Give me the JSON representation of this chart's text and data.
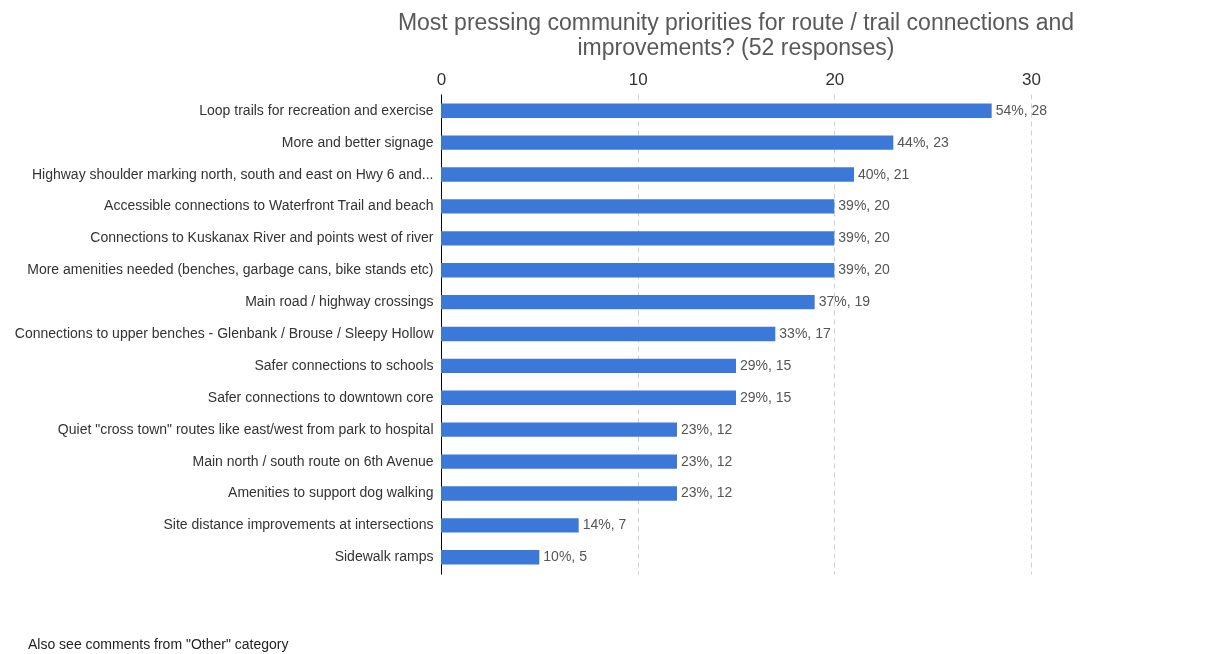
{
  "chart_data": {
    "type": "bar",
    "orientation": "horizontal",
    "title": "Most pressing community priorities for route / trail connections and improvements? (52 responses)",
    "categories": [
      "Loop trails for recreation and exercise",
      "More and better signage",
      "Highway shoulder marking north, south and east on Hwy 6 and...",
      "Accessible connections to Waterfront Trail and beach",
      "Connections to Kuskanax River and points west of river",
      "More amenities needed (benches, garbage cans, bike stands etc)",
      "Main road / highway crossings",
      "Connections to upper benches  - Glenbank / Brouse / Sleepy Hollow",
      "Safer connections to schools",
      "Safer connections to downtown core",
      "Quiet \"cross town\" routes like east/west from park to hospital",
      "Main north / south route  on 6th Avenue",
      "Amenities to support dog walking",
      "Site distance improvements at intersections",
      "Sidewalk ramps"
    ],
    "values": [
      28,
      23,
      21,
      20,
      20,
      20,
      19,
      17,
      15,
      15,
      12,
      12,
      12,
      7,
      5
    ],
    "value_labels": [
      "54%, 28",
      "44%, 23",
      "40%, 21",
      "39%, 20",
      "39%, 20",
      "39%, 20",
      "37%, 19",
      "33%, 17",
      "29%, 15",
      "29%, 15",
      "23%, 12",
      "23%, 12",
      "23%, 12",
      "14%, 7",
      "10%, 5"
    ],
    "color": "#3c78d8",
    "xlim": [
      0,
      30
    ],
    "xticks": [
      0,
      10,
      20,
      30
    ],
    "grid": "x",
    "annotations": [
      "Also see comments from \"Other\" category"
    ]
  }
}
